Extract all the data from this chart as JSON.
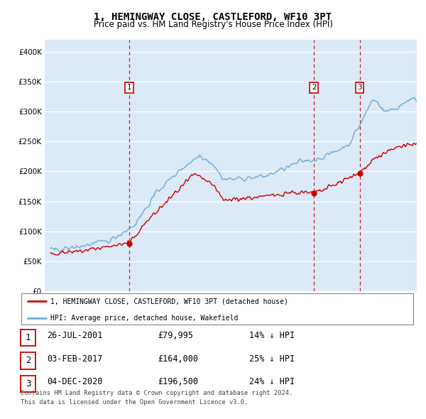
{
  "title": "1, HEMINGWAY CLOSE, CASTLEFORD, WF10 3PT",
  "subtitle": "Price paid vs. HM Land Registry's House Price Index (HPI)",
  "legend_line1": "1, HEMINGWAY CLOSE, CASTLEFORD, WF10 3PT (detached house)",
  "legend_line2": "HPI: Average price, detached house, Wakefield",
  "table_rows": [
    {
      "num": "1",
      "date": "26-JUL-2001",
      "price": "£79,995",
      "hpi": "14% ↓ HPI"
    },
    {
      "num": "2",
      "date": "03-FEB-2017",
      "price": "£164,000",
      "hpi": "25% ↓ HPI"
    },
    {
      "num": "3",
      "date": "04-DEC-2020",
      "price": "£196,500",
      "hpi": "24% ↓ HPI"
    }
  ],
  "footnote1": "Contains HM Land Registry data © Crown copyright and database right 2024.",
  "footnote2": "This data is licensed under the Open Government Licence v3.0.",
  "sale_dates_num": [
    2001.57,
    2017.09,
    2020.92
  ],
  "sale_prices": [
    79995,
    164000,
    196500
  ],
  "sale_labels": [
    "1",
    "2",
    "3"
  ],
  "vline_dates": [
    2001.57,
    2017.09,
    2020.92
  ],
  "label_hpi_offsets": [
    340000,
    220000,
    270000
  ],
  "hpi_color": "#6baed6",
  "price_color": "#cc0000",
  "vline_color": "#cc0000",
  "background_color": "#dce9f7",
  "ylim": [
    0,
    420000
  ],
  "xlim_start": 1994.5,
  "xlim_end": 2025.7
}
